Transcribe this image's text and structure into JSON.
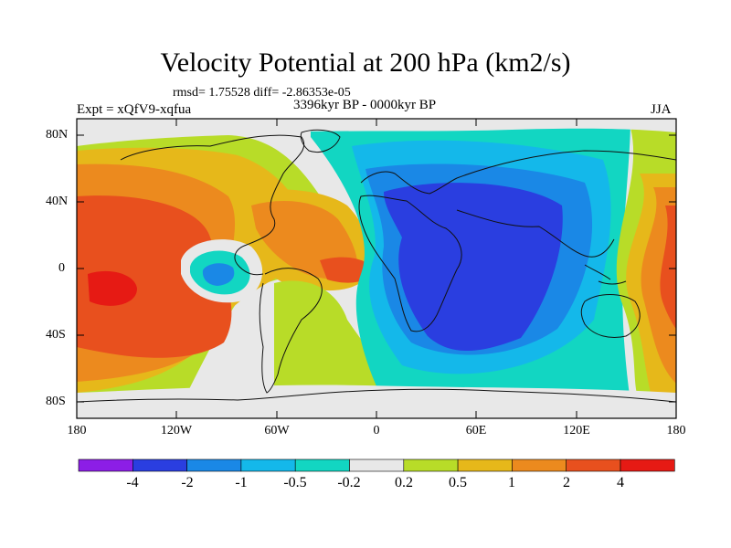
{
  "title": "Velocity Potential at 200 hPa (km2/s)",
  "subtitle": {
    "rmsd": "rmsd= 1.75528 diff= -2.86353e-05",
    "experiment": "Expt = xQfV9-xqfua",
    "period": "3396kyr BP - 0000kyr BP",
    "season": "JJA"
  },
  "axes": {
    "lat_labels": [
      "80N",
      "40N",
      "0",
      "40S",
      "80S"
    ],
    "lon_labels": [
      "180",
      "120W",
      "60W",
      "0",
      "60E",
      "120E",
      "180"
    ]
  },
  "colorbar": {
    "labels": [
      "-4",
      "-2",
      "-1",
      "-0.5",
      "-0.2",
      "0.2",
      "0.5",
      "1",
      "2",
      "4"
    ],
    "colors": [
      "#8c1ee6",
      "#2a3ee0",
      "#1a88e6",
      "#14b8ea",
      "#12d6c2",
      "#e8e8e8",
      "#b8dc28",
      "#e6b81a",
      "#ec8a1e",
      "#e8501e",
      "#e61a14"
    ]
  },
  "colors": {
    "coast": "#111111",
    "frame": "#000000"
  }
}
